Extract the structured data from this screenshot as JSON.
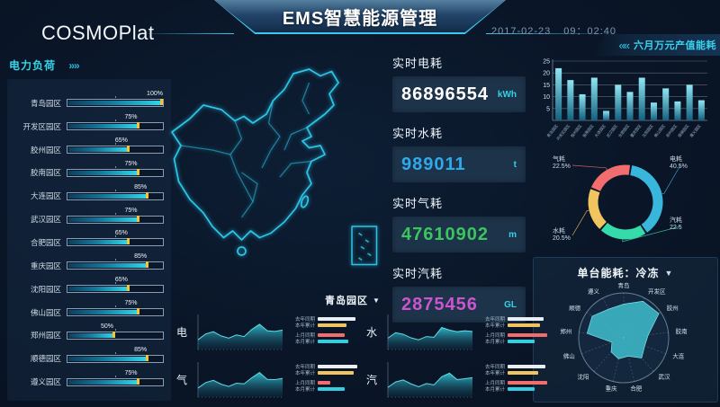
{
  "header": {
    "logo": "COSMOPlat",
    "title": "EMS智慧能源管理",
    "date": "2017-02-23",
    "time": "09：02:40"
  },
  "icons": {
    "chevrons_right": "»»",
    "chevrons_left": "««",
    "dropdown_arrow": "▼"
  },
  "left_panel": {
    "title": "电力负荷"
  },
  "right_panel": {
    "title": "六月万元产值能耗"
  },
  "radar_panel": {
    "title": "单台能耗：冷冻"
  },
  "bottom_panel": {
    "title": "青岛园区"
  },
  "stats": [
    {
      "label": "实时电耗",
      "value": "86896554",
      "unit": "kWh",
      "color": "#ffffff"
    },
    {
      "label": "实时水耗",
      "value": "989011",
      "unit": "t",
      "color": "#2fa9ea"
    },
    {
      "label": "实时气耗",
      "value": "47610902",
      "unit": "m",
      "color": "#3cc45f"
    },
    {
      "label": "实时汽耗",
      "value": "2875456",
      "unit": "GL",
      "color": "#cb55d0"
    }
  ],
  "chart_data": [
    {
      "id": "power_load",
      "type": "bar",
      "orientation": "horizontal",
      "title": "电力负荷",
      "unit": "%",
      "xlim": [
        0,
        100
      ],
      "categories": [
        "青岛园区",
        "开发区园区",
        "胶州园区",
        "胶南园区",
        "大连园区",
        "武汉园区",
        "合肥园区",
        "重庆园区",
        "沈阳园区",
        "佛山园区",
        "郑州园区",
        "顺德园区",
        "遵义园区"
      ],
      "values": [
        100,
        75,
        65,
        75,
        85,
        75,
        65,
        85,
        65,
        75,
        50,
        85,
        75
      ]
    },
    {
      "id": "monthly_energy",
      "type": "bar",
      "title": "六月万元产值能耗",
      "ylim": [
        0,
        25
      ],
      "yticks": [
        5,
        10,
        15,
        20,
        25
      ],
      "grid": true,
      "categories": [
        "青岛园区",
        "开发区园区",
        "胶州园区",
        "胶南园区",
        "大连园区",
        "武汉园区",
        "合肥园区",
        "重庆园区",
        "沈阳园区",
        "佛山园区",
        "郑州园区",
        "顺德园区",
        "遵义园区"
      ],
      "values": [
        22,
        17,
        11,
        18,
        4,
        15,
        12,
        18,
        7.5,
        13.5,
        8,
        15,
        8.5
      ]
    },
    {
      "id": "energy_share",
      "type": "pie",
      "donut": true,
      "slices": [
        {
          "label": "电耗",
          "text": "40.5%",
          "value": 40.5,
          "color": "#38b6dc",
          "pos": "tr"
        },
        {
          "label": "汽耗",
          "text": "22.5",
          "value": 22.5,
          "color": "#35dcab",
          "pos": "br"
        },
        {
          "label": "水耗",
          "text": "20.5%",
          "value": 20.5,
          "color": "#f0c45e",
          "pos": "bl"
        },
        {
          "label": "气耗",
          "text": "22.5%",
          "value": 22.5,
          "color": "#f26d6d",
          "pos": "tl"
        }
      ]
    },
    {
      "id": "unit_energy_radar",
      "type": "radar",
      "title": "单台能耗：冷冻",
      "rmax": 1,
      "categories": [
        "青岛",
        "开发区",
        "胶州",
        "胶南",
        "大连",
        "武汉",
        "合肥",
        "重庆",
        "沈阳",
        "佛山",
        "郑州",
        "顺德",
        "遵义"
      ],
      "values": [
        0.75,
        0.92,
        0.95,
        0.55,
        0.5,
        0.6,
        0.42,
        0.48,
        0.42,
        0.28,
        0.82,
        0.85,
        0.72
      ]
    },
    {
      "id": "park_trends",
      "type": "area",
      "park": "青岛园区",
      "legend_labels": [
        "去年同期",
        "本年累计",
        "上月同期",
        "本月累计"
      ],
      "legend_colors": [
        "#e8eef4",
        "#f0c45e",
        "#f26d6d",
        "#35cde0"
      ],
      "charts": [
        {
          "label": "电",
          "points": [
            30,
            48,
            55,
            42,
            35,
            45,
            40,
            62,
            78,
            58,
            56,
            60
          ],
          "legend_widths": [
            42,
            32,
            30,
            34
          ]
        },
        {
          "label": "水",
          "points": [
            35,
            52,
            47,
            36,
            30,
            40,
            38,
            68,
            60,
            55,
            58,
            56
          ],
          "legend_widths": [
            40,
            36,
            44,
            30
          ]
        },
        {
          "label": "气",
          "points": [
            28,
            45,
            52,
            40,
            33,
            43,
            41,
            60,
            76,
            55,
            54,
            58
          ],
          "legend_widths": [
            44,
            40,
            14,
            30
          ]
        },
        {
          "label": "汽",
          "points": [
            30,
            47,
            53,
            41,
            32,
            42,
            38,
            63,
            74,
            54,
            57,
            60
          ],
          "legend_widths": [
            42,
            34,
            44,
            30
          ]
        }
      ]
    }
  ]
}
